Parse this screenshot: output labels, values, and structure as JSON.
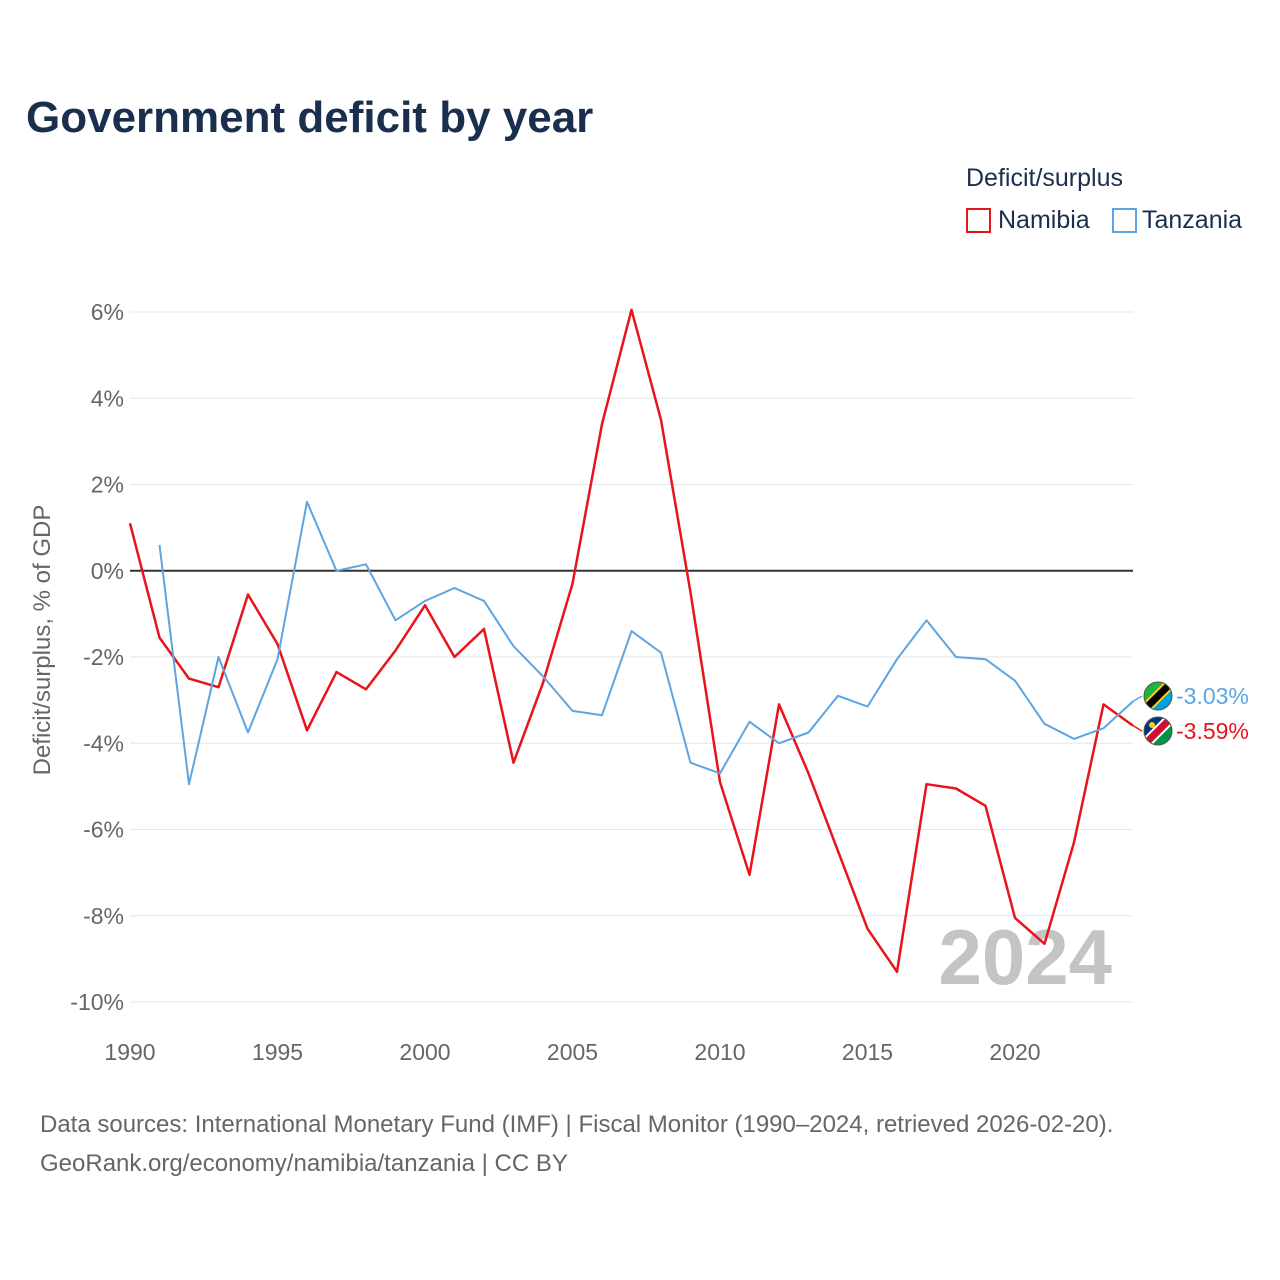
{
  "title": "Government deficit by year",
  "year_watermark": "2024",
  "legend": {
    "title": "Deficit/surplus",
    "items": [
      {
        "label": "Namibia",
        "color": "#e8141b"
      },
      {
        "label": "Tanzania",
        "color": "#5ea4e0"
      }
    ]
  },
  "source": {
    "line1": "Data sources: International Monetary Fund (IMF) | Fiscal Monitor (1990–2024, retrieved 2026-02-20).",
    "line2": "GeoRank.org/economy/namibia/tanzania | CC BY"
  },
  "chart_data": {
    "type": "line",
    "title": "Government deficit by year",
    "xlabel": "",
    "ylabel": "Deficit/surplus, % of GDP",
    "xlim": [
      1990,
      2024
    ],
    "ylim": [
      -10,
      6
    ],
    "yticks": [
      6,
      4,
      2,
      0,
      -2,
      -4,
      -6,
      -8,
      -10
    ],
    "ytick_labels": [
      "6%",
      "4%",
      "2%",
      "0%",
      "-2%",
      "-4%",
      "-6%",
      "-8%",
      "-10%"
    ],
    "xticks": [
      1990,
      1995,
      2000,
      2005,
      2010,
      2015,
      2020
    ],
    "xtick_labels": [
      "1990",
      "1995",
      "2000",
      "2005",
      "2010",
      "2015",
      "2020"
    ],
    "grid": true,
    "zero_line": true,
    "series": [
      {
        "name": "Namibia",
        "color": "#e8141b",
        "end_label": "-3.59%",
        "x": [
          1990,
          1991,
          1992,
          1993,
          1994,
          1995,
          1996,
          1997,
          1998,
          1999,
          2000,
          2001,
          2002,
          2003,
          2004,
          2005,
          2006,
          2007,
          2008,
          2009,
          2010,
          2011,
          2012,
          2013,
          2014,
          2015,
          2016,
          2017,
          2018,
          2019,
          2020,
          2021,
          2022,
          2023,
          2024
        ],
        "values": [
          1.1,
          -1.55,
          -2.5,
          -2.7,
          -0.55,
          -1.7,
          -3.7,
          -2.35,
          -2.75,
          -1.85,
          -0.8,
          -2.0,
          -1.35,
          -4.45,
          -2.6,
          -0.3,
          3.4,
          6.05,
          3.5,
          -0.5,
          -4.9,
          -7.05,
          -3.1,
          -4.7,
          -6.5,
          -8.3,
          -9.3,
          -4.95,
          -5.05,
          -5.45,
          -8.05,
          -8.65,
          -6.3,
          -3.1,
          -3.59
        ]
      },
      {
        "name": "Tanzania",
        "color": "#5ea4e0",
        "end_label": "-3.03%",
        "x": [
          1991,
          1992,
          1993,
          1994,
          1995,
          1996,
          1997,
          1998,
          1999,
          2000,
          2001,
          2002,
          2003,
          2004,
          2005,
          2006,
          2007,
          2008,
          2009,
          2010,
          2011,
          2012,
          2013,
          2014,
          2015,
          2016,
          2017,
          2018,
          2019,
          2020,
          2021,
          2022,
          2023,
          2024
        ],
        "values": [
          0.6,
          -4.95,
          -2.0,
          -3.75,
          -2.05,
          1.6,
          0.0,
          0.15,
          -1.15,
          -0.7,
          -0.4,
          -0.7,
          -1.75,
          -2.45,
          -3.25,
          -3.35,
          -1.4,
          -1.9,
          -4.45,
          -4.7,
          -3.5,
          -4.0,
          -3.75,
          -2.9,
          -3.15,
          -2.05,
          -1.15,
          -2.0,
          -2.05,
          -2.55,
          -3.55,
          -3.9,
          -3.65,
          -3.03
        ]
      }
    ]
  }
}
